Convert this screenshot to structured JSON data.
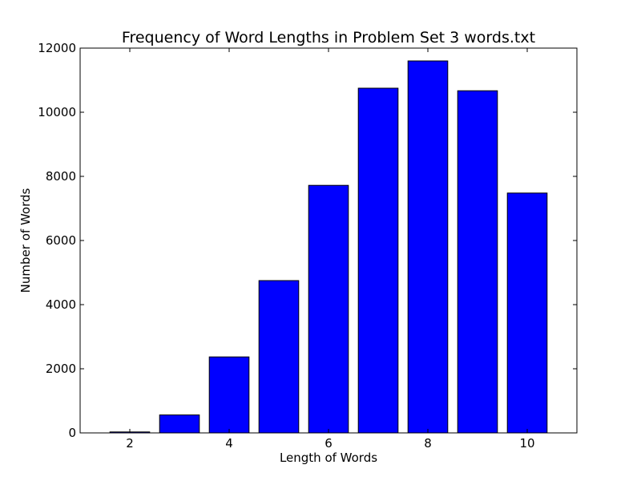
{
  "chart_data": {
    "type": "bar",
    "title": "Frequency of Word Lengths in Problem Set 3 words.txt",
    "xlabel": "Length of Words",
    "ylabel": "Number of Words",
    "x": [
      2,
      3,
      4,
      5,
      6,
      7,
      8,
      9,
      10
    ],
    "values": [
      30,
      560,
      2370,
      4750,
      7720,
      10750,
      11600,
      10670,
      7480
    ],
    "xlim": [
      1,
      11
    ],
    "ylim": [
      0,
      12000
    ],
    "xticks": [
      2,
      4,
      6,
      8,
      10
    ],
    "yticks": [
      0,
      2000,
      4000,
      6000,
      8000,
      10000,
      12000
    ],
    "bar_color": "#0000ff",
    "grid": false
  }
}
